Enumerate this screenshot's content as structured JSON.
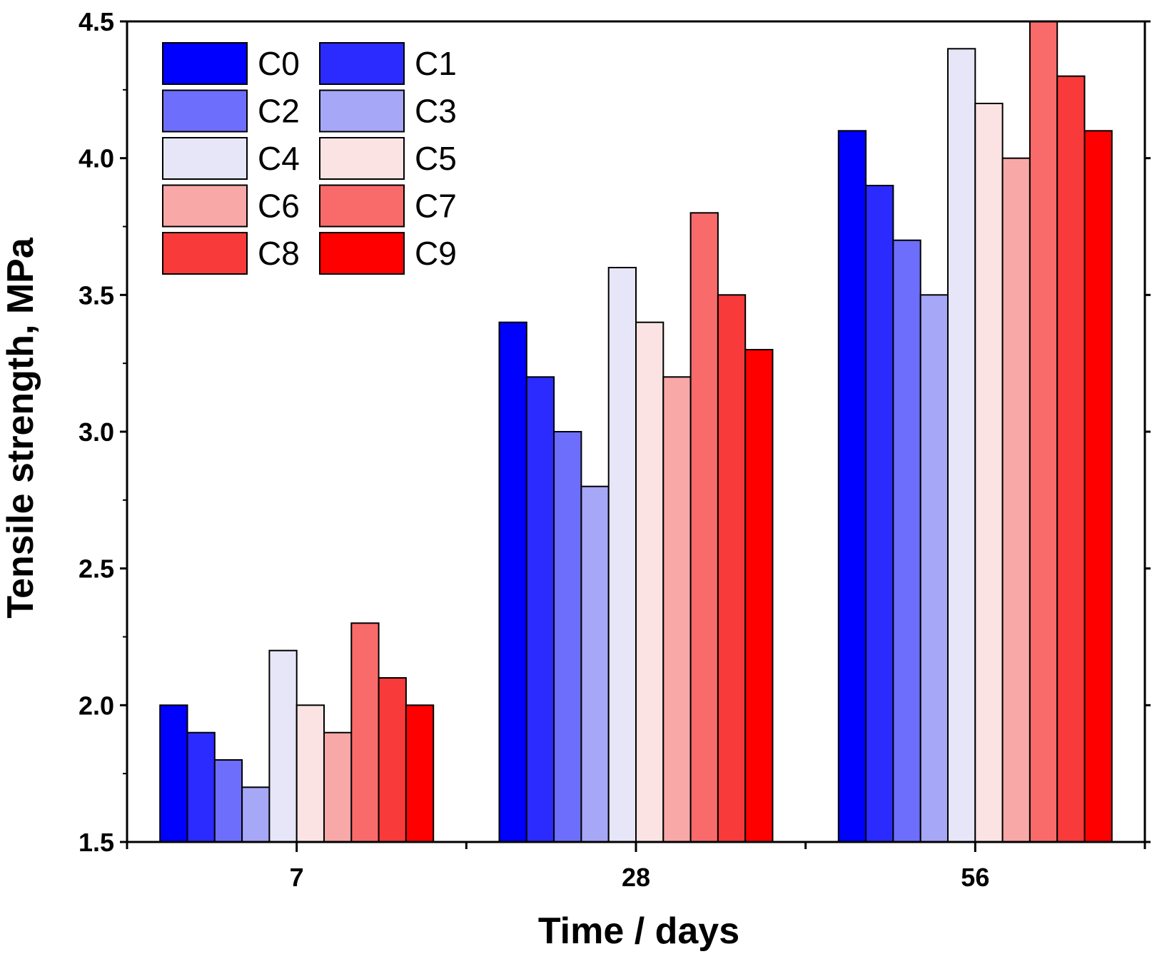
{
  "chart_data": {
    "type": "bar",
    "title": "",
    "xlabel": "Time / days",
    "ylabel": "Tensile strength, MPa",
    "categories": [
      "7",
      "28",
      "56"
    ],
    "ylim": [
      1.5,
      4.5
    ],
    "yticks": [
      "1.5",
      "2.0",
      "2.5",
      "3.0",
      "3.5",
      "4.0",
      "4.5"
    ],
    "grid": false,
    "legend_position": "top-left",
    "series": [
      {
        "name": "C0",
        "color": "#0000ff",
        "values": [
          2.0,
          3.4,
          4.1
        ]
      },
      {
        "name": "C1",
        "color": "#2b2bff",
        "values": [
          1.9,
          3.2,
          3.9
        ]
      },
      {
        "name": "C2",
        "color": "#6e6efc",
        "values": [
          1.8,
          3.0,
          3.7
        ]
      },
      {
        "name": "C3",
        "color": "#a7a7f7",
        "values": [
          1.7,
          2.8,
          3.5
        ]
      },
      {
        "name": "C4",
        "color": "#e6e6f8",
        "values": [
          2.2,
          3.6,
          4.4
        ]
      },
      {
        "name": "C5",
        "color": "#fbe3e3",
        "values": [
          2.0,
          3.4,
          4.2
        ]
      },
      {
        "name": "C6",
        "color": "#f9a8a8",
        "values": [
          1.9,
          3.2,
          4.0
        ]
      },
      {
        "name": "C7",
        "color": "#f96b6b",
        "values": [
          2.3,
          3.8,
          4.5
        ]
      },
      {
        "name": "C8",
        "color": "#f83a3a",
        "values": [
          2.1,
          3.5,
          4.3
        ]
      },
      {
        "name": "C9",
        "color": "#ff0000",
        "values": [
          2.0,
          3.3,
          4.1
        ]
      }
    ]
  }
}
